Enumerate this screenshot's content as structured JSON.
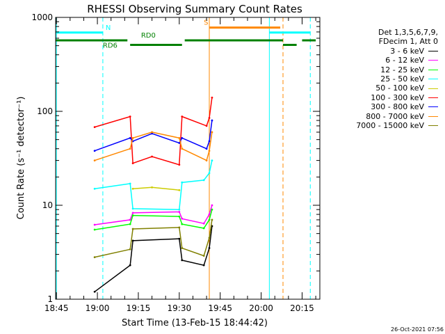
{
  "chart_data": {
    "type": "line",
    "title": "RHESSI Observing Summary Count Rates",
    "xlabel": "Start Time (13-Feb-15 18:44:42)",
    "ylabel": "Count Rate (s⁻¹ detector⁻¹)",
    "yscale": "log",
    "ylim": [
      1,
      1000
    ],
    "xlim": [
      "18:44:42",
      "20:21:30"
    ],
    "x_ticks": [
      "18:45",
      "19:00",
      "19:15",
      "19:30",
      "19:45",
      "20:00",
      "20:15"
    ],
    "y_ticks": [
      "1",
      "10",
      "100",
      "1000"
    ],
    "grid": false,
    "legend_position": "right",
    "legend_header": [
      "Det 1,3,5,6,7,9,",
      "FDecim 1, Att 0"
    ],
    "series": [
      {
        "name": "3 - 6 keV",
        "color": "#000000",
        "x": [
          "18:59",
          "19:12",
          "19:13",
          "19:30",
          "19:31",
          "19:39",
          "19:41",
          "19:42"
        ],
        "values": [
          1.2,
          2.3,
          4.2,
          4.4,
          2.6,
          2.3,
          3.5,
          6
        ]
      },
      {
        "name": "6 - 12 keV",
        "color": "#ff00ff",
        "x": [
          "18:59",
          "19:12",
          "19:13",
          "19:30",
          "19:31",
          "19:39",
          "19:41",
          "19:42"
        ],
        "values": [
          6.2,
          7.0,
          8.3,
          8.5,
          7.2,
          6.4,
          8.0,
          10
        ]
      },
      {
        "name": "12 - 25 keV",
        "color": "#00ff00",
        "x": [
          "18:59",
          "19:12",
          "19:13",
          "19:30",
          "19:31",
          "19:39",
          "19:41",
          "19:42"
        ],
        "values": [
          5.5,
          6.3,
          7.8,
          7.6,
          6.3,
          5.7,
          7.0,
          9
        ]
      },
      {
        "name": "25 - 50 keV",
        "color": "#00ffff",
        "x": [
          "18:59",
          "19:12",
          "19:13",
          "19:30",
          "19:31",
          "19:39",
          "19:41",
          "19:42"
        ],
        "values": [
          15,
          17,
          9.2,
          9.0,
          17.5,
          18.5,
          22,
          30
        ]
      },
      {
        "name": "50 - 100 keV",
        "color": "#cccc00",
        "x": [
          "19:13",
          "19:20",
          "19:30"
        ],
        "values": [
          15,
          15.5,
          14.5
        ]
      },
      {
        "name": "100 - 300 keV",
        "color": "#ff0000",
        "x": [
          "18:59",
          "19:12",
          "19:13",
          "19:20",
          "19:30",
          "19:31",
          "19:40",
          "19:41",
          "19:42"
        ],
        "values": [
          68,
          88,
          28,
          33,
          27,
          88,
          70,
          85,
          140
        ]
      },
      {
        "name": "300 - 800 keV",
        "color": "#0000ff",
        "x": [
          "18:59",
          "19:12",
          "19:13",
          "19:20",
          "19:30",
          "19:31",
          "19:40",
          "19:41",
          "19:42"
        ],
        "values": [
          38,
          52,
          48,
          58,
          46,
          52,
          40,
          48,
          80
        ]
      },
      {
        "name": "800 - 7000 keV",
        "color": "#ff8800",
        "x": [
          "18:59",
          "19:12",
          "19:13",
          "19:20",
          "19:30",
          "19:31",
          "19:40",
          "19:41",
          "19:42"
        ],
        "values": [
          30,
          40,
          52,
          60,
          52,
          40,
          30,
          38,
          60
        ]
      },
      {
        "name": "7000 - 15000 keV",
        "color": "#808000",
        "x": [
          "18:59",
          "19:12",
          "19:13",
          "19:30",
          "19:31",
          "19:39",
          "19:41",
          "19:42"
        ],
        "values": [
          2.8,
          3.4,
          5.6,
          5.8,
          3.5,
          2.9,
          4.5,
          7
        ]
      }
    ],
    "flag_bars": [
      {
        "label": "N",
        "color": "#00ffff",
        "level": 690,
        "segments": [
          [
            "18:44:42",
            "19:02"
          ],
          [
            "20:03",
            "20:18"
          ]
        ]
      },
      {
        "label": "RD0",
        "color": "#008000",
        "level": 570,
        "segments": [
          [
            "18:44:42",
            "19:11"
          ],
          [
            "19:32",
            "20:08"
          ],
          [
            "20:15",
            "20:20"
          ]
        ]
      },
      {
        "label": "RD6",
        "color": "#008000",
        "level": 510,
        "segments": [
          [
            "19:12",
            "19:31"
          ],
          [
            "20:08",
            "20:13"
          ]
        ]
      },
      {
        "label": "S",
        "color": "#ff8800",
        "level": 780,
        "segments": [
          [
            "19:41",
            "20:07"
          ]
        ]
      }
    ],
    "vertical_markers": [
      {
        "x": "18:45",
        "color": "#00ffff",
        "style": "solid"
      },
      {
        "x": "19:02",
        "color": "#00ffff",
        "style": "dashed"
      },
      {
        "x": "20:03",
        "color": "#00ffff",
        "style": "solid"
      },
      {
        "x": "20:18",
        "color": "#00ffff",
        "style": "dashed"
      },
      {
        "x": "19:41",
        "color": "#ff8800",
        "style": "solid"
      },
      {
        "x": "20:08",
        "color": "#ff8800",
        "style": "dashed"
      }
    ]
  },
  "footer": {
    "timestamp": "26-Oct-2021 07:56"
  }
}
